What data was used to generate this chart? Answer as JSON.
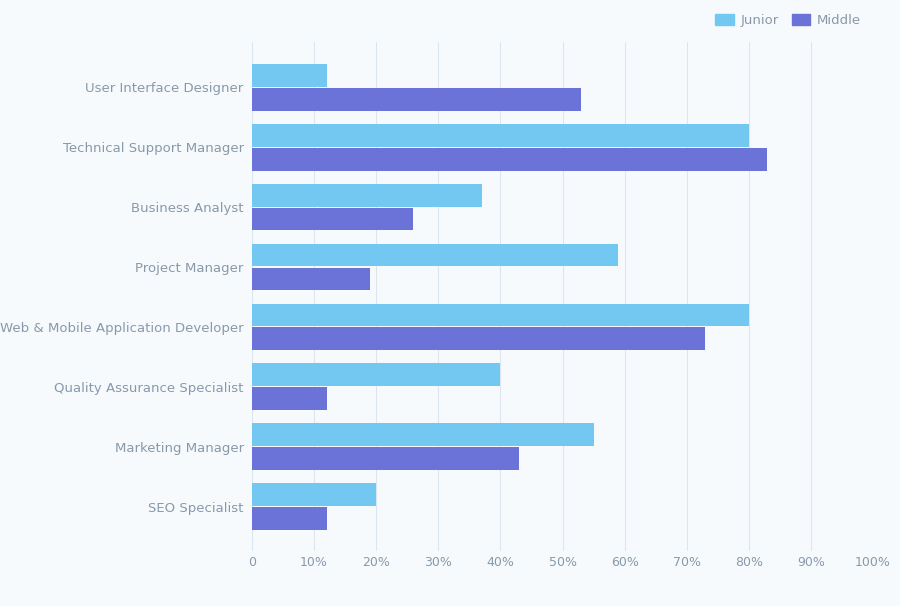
{
  "categories": [
    "SEO Specialist",
    "Marketing Manager",
    "Quality Assurance Specialist",
    "Web & Mobile Application Developer",
    "Project Manager",
    "Business Analyst",
    "Technical Support Manager",
    "User Interface Designer"
  ],
  "junior": [
    20,
    55,
    40,
    80,
    59,
    37,
    80,
    12
  ],
  "middle": [
    12,
    43,
    12,
    73,
    19,
    26,
    83,
    53
  ],
  "junior_color": "#72c8f0",
  "middle_color": "#6b72d8",
  "background_color": "#f7fafd",
  "grid_color": "#dce6f0",
  "text_color": "#8899aa",
  "label_fontsize": 9.5,
  "tick_fontsize": 9,
  "legend_labels": [
    "Junior",
    "Middle"
  ],
  "xlim": [
    0,
    100
  ],
  "xticks": [
    0,
    10,
    20,
    30,
    40,
    50,
    60,
    70,
    80,
    90,
    100
  ],
  "xtick_labels": [
    "0",
    "10%",
    "20%",
    "30%",
    "40%",
    "50%",
    "60%",
    "70%",
    "80%",
    "90%",
    "100%"
  ]
}
